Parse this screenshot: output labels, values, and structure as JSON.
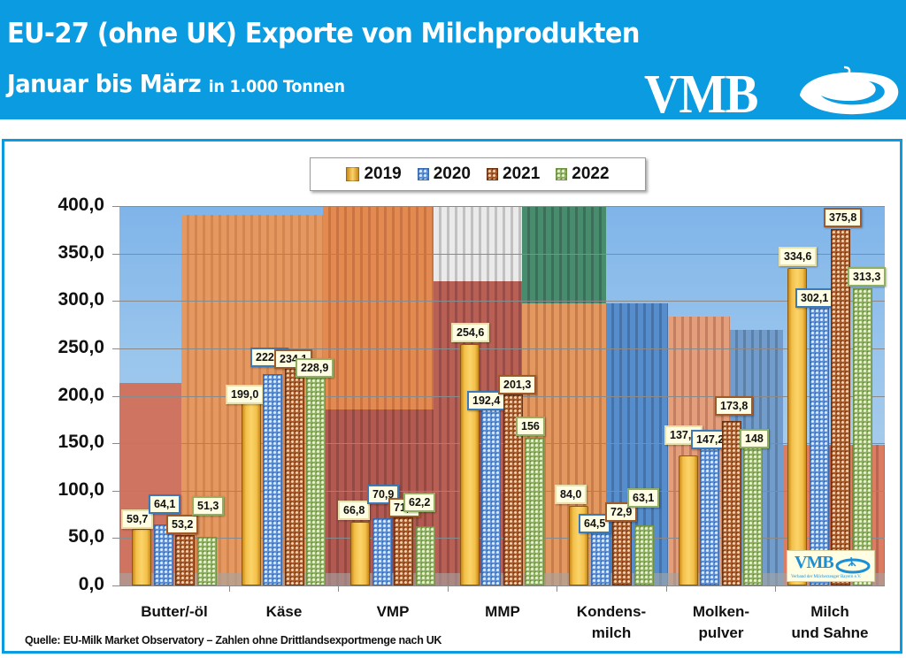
{
  "header": {
    "title_line1": "EU-27 (ohne UK) Exporte von Milchprodukten",
    "title_line2": "Januar bis März",
    "title_unit": "in 1.000 Tonnen",
    "logo_text": "VMB",
    "background_color": "#0a9be0"
  },
  "legend": {
    "items": [
      {
        "label": "2019",
        "color": "#f3c04a"
      },
      {
        "label": "2020",
        "color": "#5a8fd6"
      },
      {
        "label": "2021",
        "color": "#a85a2a"
      },
      {
        "label": "2022",
        "color": "#8fb062"
      }
    ]
  },
  "mini_logo": {
    "text": "VMB",
    "subtext": "Verband der Milcherzeuger Bayern e.V."
  },
  "footer": {
    "source": "Quelle: EU-Milk Market Observatory – Zahlen ohne Drittlandsexportmenge nach UK"
  },
  "chart_data": {
    "type": "bar",
    "title": "EU-27 (ohne UK) Exporte von Milchprodukten – Januar bis März in 1.000 Tonnen",
    "xlabel": "",
    "ylabel": "",
    "ylim": [
      0,
      400
    ],
    "yticks": [
      "0,0",
      "50,0",
      "100,0",
      "150,0",
      "200,0",
      "250,0",
      "300,0",
      "350,0",
      "400,0"
    ],
    "grid": true,
    "legend_position": "top",
    "categories": [
      "Butter/-öl",
      "Käse",
      "VMP",
      "MMP",
      "Kondens-\nmilch",
      "Molken-\npulver",
      "Milch\nund Sahne"
    ],
    "series": [
      {
        "name": "2019",
        "values": [
          59.7,
          199.0,
          66.8,
          254.6,
          84.0,
          137.0,
          334.6
        ],
        "labels": [
          "59,7",
          "199,0",
          "66,8",
          "254,6",
          "84,0",
          "137,0",
          "334,6"
        ]
      },
      {
        "name": "2020",
        "values": [
          64.1,
          222.8,
          70.9,
          192.4,
          64.5,
          147.2,
          302.1
        ],
        "labels": [
          "64,1",
          "222,8",
          "70,9",
          "192,4",
          "64,5",
          "147,2",
          "302,1"
        ]
      },
      {
        "name": "2021",
        "values": [
          53.2,
          234.1,
          71.7,
          201.3,
          72.9,
          173.8,
          375.8
        ],
        "labels": [
          "53,2",
          "234,1",
          "71,7",
          "201,3",
          "72,9",
          "173,8",
          "375,8"
        ]
      },
      {
        "name": "2022",
        "values": [
          51.3,
          228.9,
          62.2,
          156,
          63.1,
          148,
          313.3
        ],
        "labels": [
          "51,3",
          "228,9",
          "62,2",
          "156",
          "63,1",
          "148",
          "313,3"
        ]
      }
    ]
  }
}
